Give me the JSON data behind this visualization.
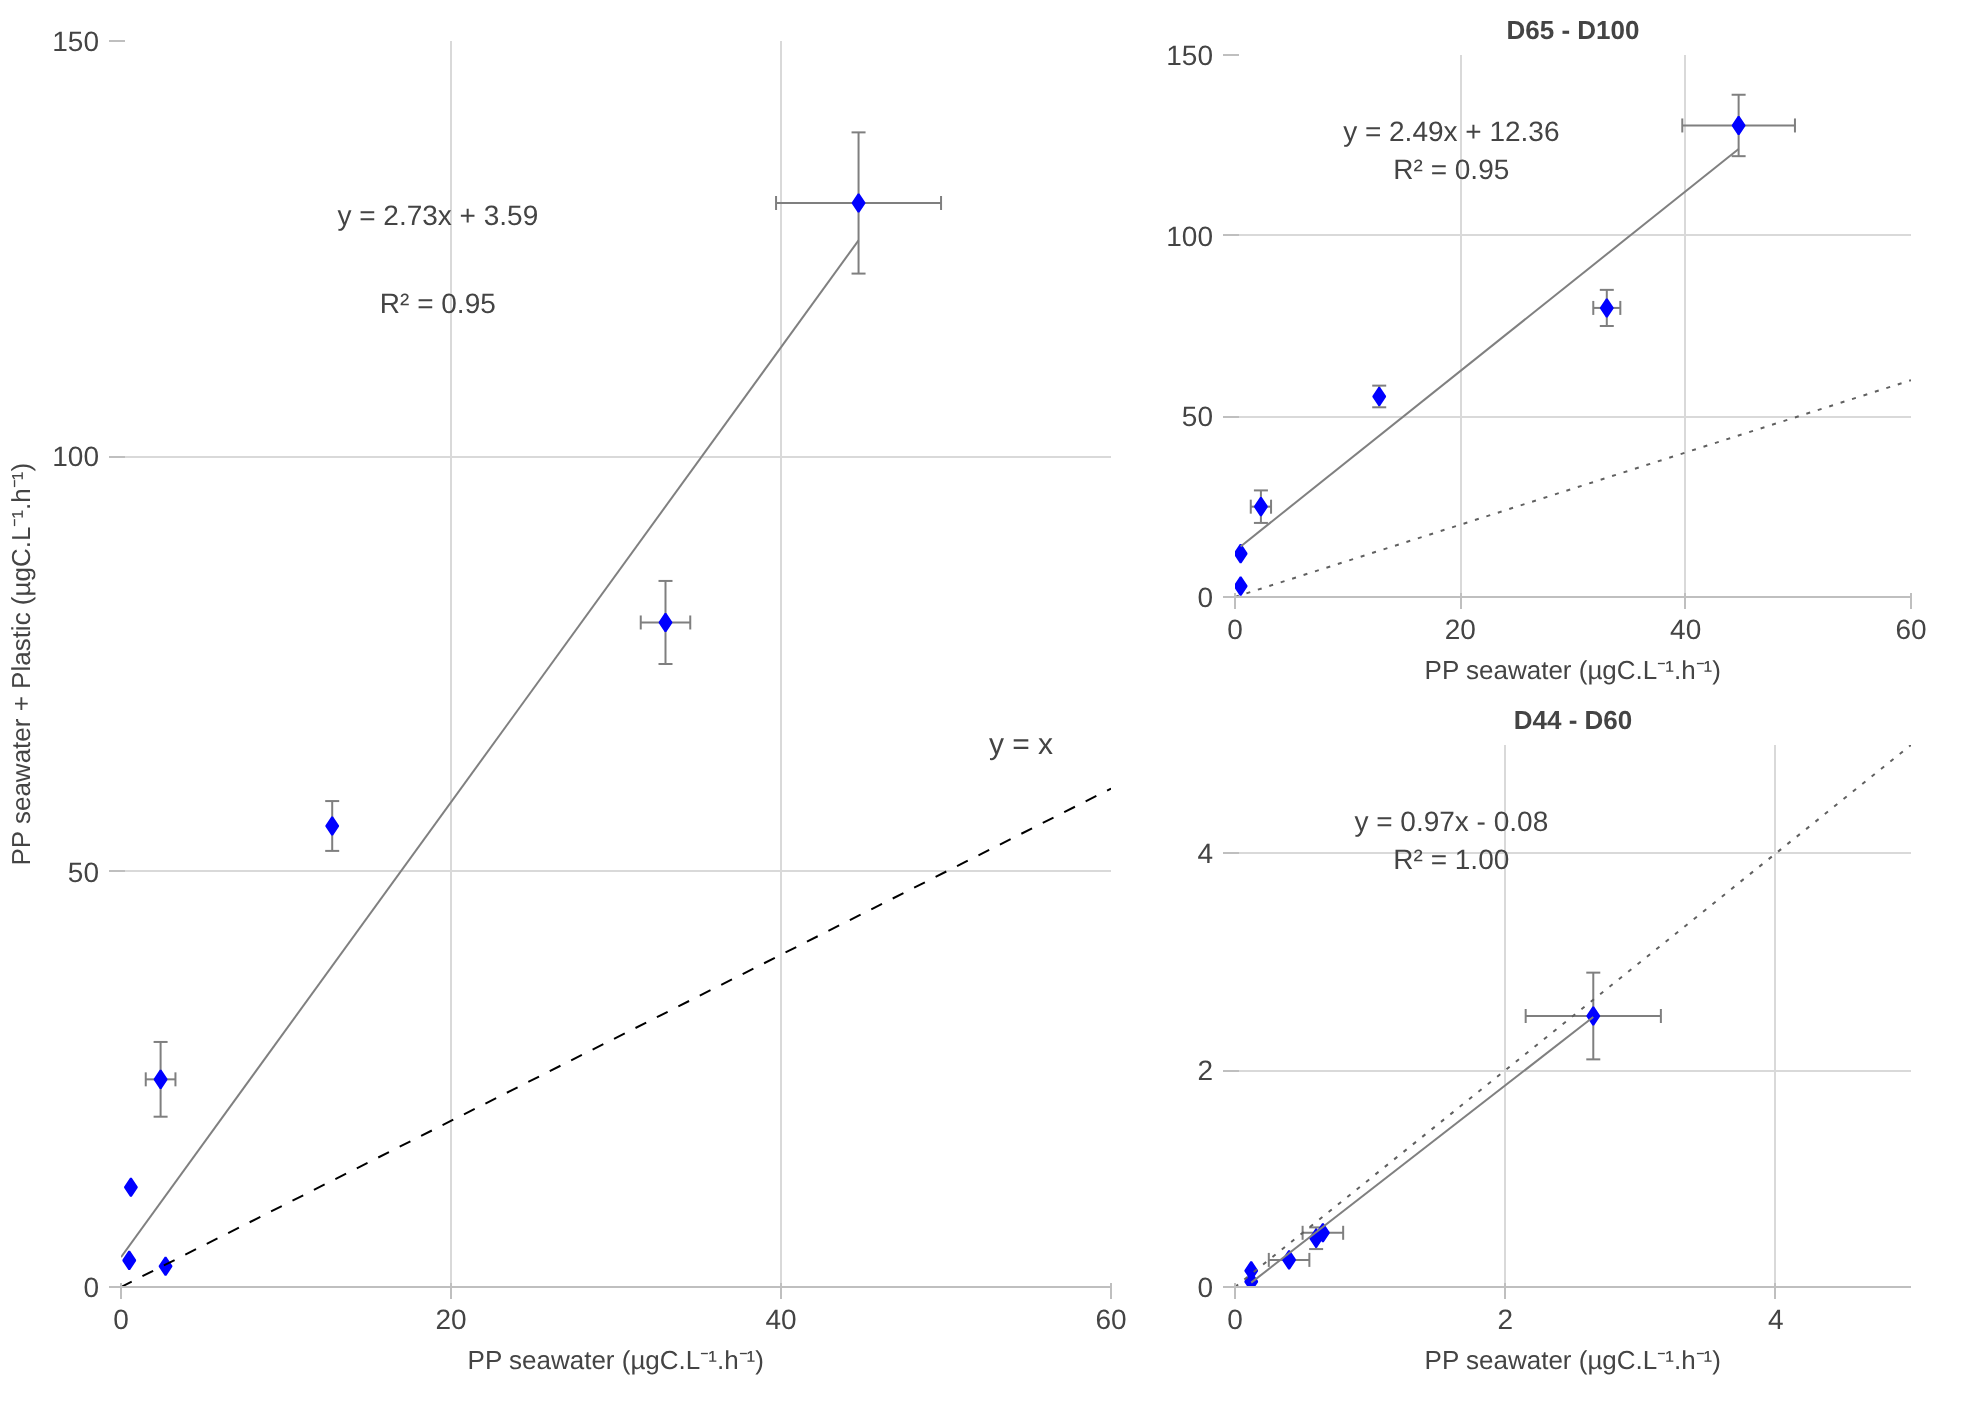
{
  "chart_data": [
    {
      "type": "scatter",
      "xlabel": "PP seawater (µgC.L⁻¹.h⁻¹)",
      "ylabel": "PP seawater + Plastic (µgC.L⁻¹.h⁻¹)",
      "xlim": [
        0,
        60
      ],
      "ylim": [
        0,
        150
      ],
      "xticks": [
        0,
        20,
        40,
        60
      ],
      "yticks": [
        0,
        50,
        100,
        150
      ],
      "grid": true,
      "series": [
        {
          "type": "scatter",
          "marker": "diamond",
          "color": "#0000ff",
          "x": [
            44.7,
            33,
            12.8,
            2.4,
            0.6,
            0.5,
            2.7
          ],
          "values": [
            130.5,
            80,
            55.5,
            25,
            12,
            3.2,
            2.5
          ],
          "errors": [
            8.5,
            5,
            3,
            4.5,
            null,
            null,
            null
          ],
          "xerrors": [
            5,
            1.5,
            null,
            0.9,
            null,
            null,
            null
          ]
        },
        {
          "type": "line",
          "color": "#808080",
          "line_style": "solid",
          "x": [
            0,
            44.7
          ],
          "values": [
            3.6,
            126
          ]
        },
        {
          "type": "line",
          "name": "y = x",
          "color": "#000000",
          "line_style": "dashed",
          "x": [
            0,
            60
          ],
          "values": [
            0,
            60
          ]
        }
      ],
      "annotations": [
        "y = 2.73x + 3.59",
        "R² = 0.95"
      ]
    },
    {
      "type": "scatter",
      "title": "D65 - D100",
      "xlabel": "PP seawater (µgC.L⁻¹.h⁻¹)",
      "xlim": [
        0,
        60
      ],
      "ylim": [
        0,
        150
      ],
      "xticks": [
        0,
        20,
        40,
        60
      ],
      "yticks": [
        0,
        50,
        100,
        150
      ],
      "grid": true,
      "series": [
        {
          "type": "scatter",
          "marker": "diamond",
          "color": "#0000ff",
          "x": [
            44.7,
            33,
            12.8,
            2.3,
            0.5,
            0.5
          ],
          "values": [
            130.5,
            80,
            55.5,
            25,
            12,
            3
          ],
          "errors": [
            8.5,
            5,
            3,
            4.5,
            null,
            null
          ],
          "xerrors": [
            5,
            1.2,
            null,
            0.9,
            null,
            null
          ]
        },
        {
          "type": "line",
          "color": "#808080",
          "line_style": "solid",
          "x": [
            0.5,
            44.7
          ],
          "values": [
            14,
            124
          ]
        },
        {
          "type": "line",
          "color": "#606060",
          "line_style": "dotted",
          "x": [
            0,
            60
          ],
          "values": [
            0,
            60
          ]
        }
      ],
      "annotations": [
        "y = 2.49x + 12.36",
        "R² = 0.95"
      ]
    },
    {
      "type": "scatter",
      "title": "D44 - D60",
      "xlabel": "PP seawater (µgC.L⁻¹.h⁻¹)",
      "xlim": [
        0,
        5
      ],
      "ylim": [
        0,
        5
      ],
      "xticks": [
        0,
        2,
        4
      ],
      "yticks": [
        0,
        2,
        4
      ],
      "grid": true,
      "series": [
        {
          "type": "scatter",
          "marker": "diamond",
          "color": "#0000ff",
          "x": [
            2.65,
            0.65,
            0.6,
            0.4,
            0.12,
            0.12
          ],
          "values": [
            2.5,
            0.5,
            0.45,
            0.25,
            0.15,
            0.05
          ],
          "errors": [
            0.4,
            null,
            0.1,
            null,
            null,
            null
          ],
          "xerrors": [
            0.5,
            0.15,
            null,
            0.15,
            null,
            null
          ]
        },
        {
          "type": "line",
          "color": "#808080",
          "line_style": "solid",
          "x": [
            0.12,
            2.65
          ],
          "values": [
            0.04,
            2.49
          ]
        },
        {
          "type": "line",
          "color": "#606060",
          "line_style": "dotted",
          "x": [
            0,
            5
          ],
          "values": [
            0,
            5
          ]
        }
      ],
      "annotations": [
        "y = 0.97x - 0.08",
        "R² = 1.00"
      ]
    }
  ]
}
